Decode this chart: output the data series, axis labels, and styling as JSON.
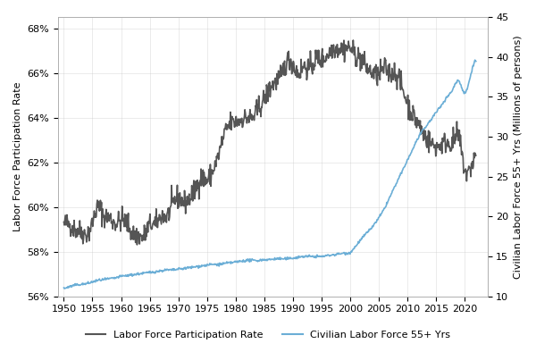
{
  "lfpr_years": [
    1950,
    1951,
    1952,
    1953,
    1954,
    1955,
    1956,
    1957,
    1958,
    1959,
    1960,
    1961,
    1962,
    1963,
    1964,
    1965,
    1966,
    1967,
    1968,
    1969,
    1970,
    1971,
    1972,
    1973,
    1974,
    1975,
    1976,
    1977,
    1978,
    1979,
    1980,
    1981,
    1982,
    1983,
    1984,
    1985,
    1986,
    1987,
    1988,
    1989,
    1990,
    1991,
    1992,
    1993,
    1994,
    1995,
    1996,
    1997,
    1998,
    1999,
    2000,
    2001,
    2002,
    2003,
    2004,
    2005,
    2006,
    2007,
    2008,
    2009,
    2010,
    2011,
    2012,
    2013,
    2014,
    2015,
    2016,
    2017,
    2018,
    2019,
    2020,
    2021,
    2022
  ],
  "lfpr_values": [
    59.2,
    59.2,
    59.0,
    58.9,
    58.8,
    59.3,
    60.0,
    59.6,
    59.5,
    59.3,
    59.4,
    59.3,
    58.8,
    58.7,
    58.7,
    59.2,
    59.2,
    59.6,
    59.6,
    60.1,
    60.4,
    60.2,
    60.4,
    60.8,
    61.3,
    61.2,
    61.6,
    62.3,
    63.2,
    63.7,
    63.8,
    63.9,
    64.0,
    64.0,
    64.4,
    64.8,
    65.3,
    65.6,
    65.9,
    66.5,
    66.4,
    66.0,
    66.3,
    66.2,
    66.6,
    66.6,
    66.8,
    67.1,
    67.1,
    67.1,
    67.1,
    66.8,
    66.6,
    66.2,
    66.0,
    65.9,
    66.2,
    66.0,
    66.0,
    65.4,
    64.7,
    64.1,
    63.7,
    63.2,
    62.9,
    62.7,
    62.8,
    62.9,
    62.9,
    63.1,
    61.7,
    61.7,
    62.3
  ],
  "clf55_years": [
    1950,
    1951,
    1952,
    1953,
    1954,
    1955,
    1956,
    1957,
    1958,
    1959,
    1960,
    1961,
    1962,
    1963,
    1964,
    1965,
    1966,
    1967,
    1968,
    1969,
    1970,
    1971,
    1972,
    1973,
    1974,
    1975,
    1976,
    1977,
    1978,
    1979,
    1980,
    1981,
    1982,
    1983,
    1984,
    1985,
    1986,
    1987,
    1988,
    1989,
    1990,
    1991,
    1992,
    1993,
    1994,
    1995,
    1996,
    1997,
    1998,
    1999,
    2000,
    2001,
    2002,
    2003,
    2004,
    2005,
    2006,
    2007,
    2008,
    2009,
    2010,
    2011,
    2012,
    2013,
    2014,
    2015,
    2016,
    2017,
    2018,
    2019,
    2020,
    2021,
    2022
  ],
  "clf55_values": [
    11.0,
    11.2,
    11.4,
    11.5,
    11.6,
    11.8,
    12.0,
    12.1,
    12.2,
    12.3,
    12.5,
    12.6,
    12.7,
    12.8,
    12.9,
    13.0,
    13.1,
    13.2,
    13.3,
    13.3,
    13.4,
    13.5,
    13.6,
    13.7,
    13.8,
    13.9,
    14.0,
    14.0,
    14.1,
    14.2,
    14.3,
    14.4,
    14.5,
    14.5,
    14.5,
    14.6,
    14.6,
    14.7,
    14.7,
    14.7,
    14.8,
    14.9,
    15.0,
    15.0,
    15.0,
    15.0,
    15.1,
    15.2,
    15.3,
    15.4,
    15.5,
    16.3,
    17.2,
    18.0,
    18.8,
    19.8,
    21.0,
    22.5,
    24.0,
    25.5,
    27.0,
    28.5,
    30.0,
    31.0,
    32.0,
    33.0,
    34.0,
    35.0,
    36.0,
    37.0,
    35.5,
    37.5,
    39.5
  ],
  "lfpr_color": "#555555",
  "clf55_color": "#6baed6",
  "lfpr_label": "Labor Force Participation Rate",
  "clf55_label": "Civilian Labor Force 55+ Yrs",
  "ylabel_left": "Labor Force Participation Rate",
  "ylabel_right": "Civilian Labor Force 55+ Yrs (Millions of persons)",
  "ylim_left": [
    56,
    68.5
  ],
  "ylim_right": [
    10,
    45
  ],
  "yticks_left": [
    56,
    58,
    60,
    62,
    64,
    66,
    68
  ],
  "yticks_right": [
    10,
    15,
    20,
    25,
    30,
    35,
    40,
    45
  ],
  "xlim": [
    1949,
    2024
  ],
  "xticks": [
    1950,
    1955,
    1960,
    1965,
    1970,
    1975,
    1980,
    1985,
    1990,
    1995,
    2000,
    2005,
    2010,
    2015,
    2020
  ],
  "bg_color": "#ffffff",
  "linewidth_lfpr": 1.2,
  "linewidth_clf": 1.2
}
